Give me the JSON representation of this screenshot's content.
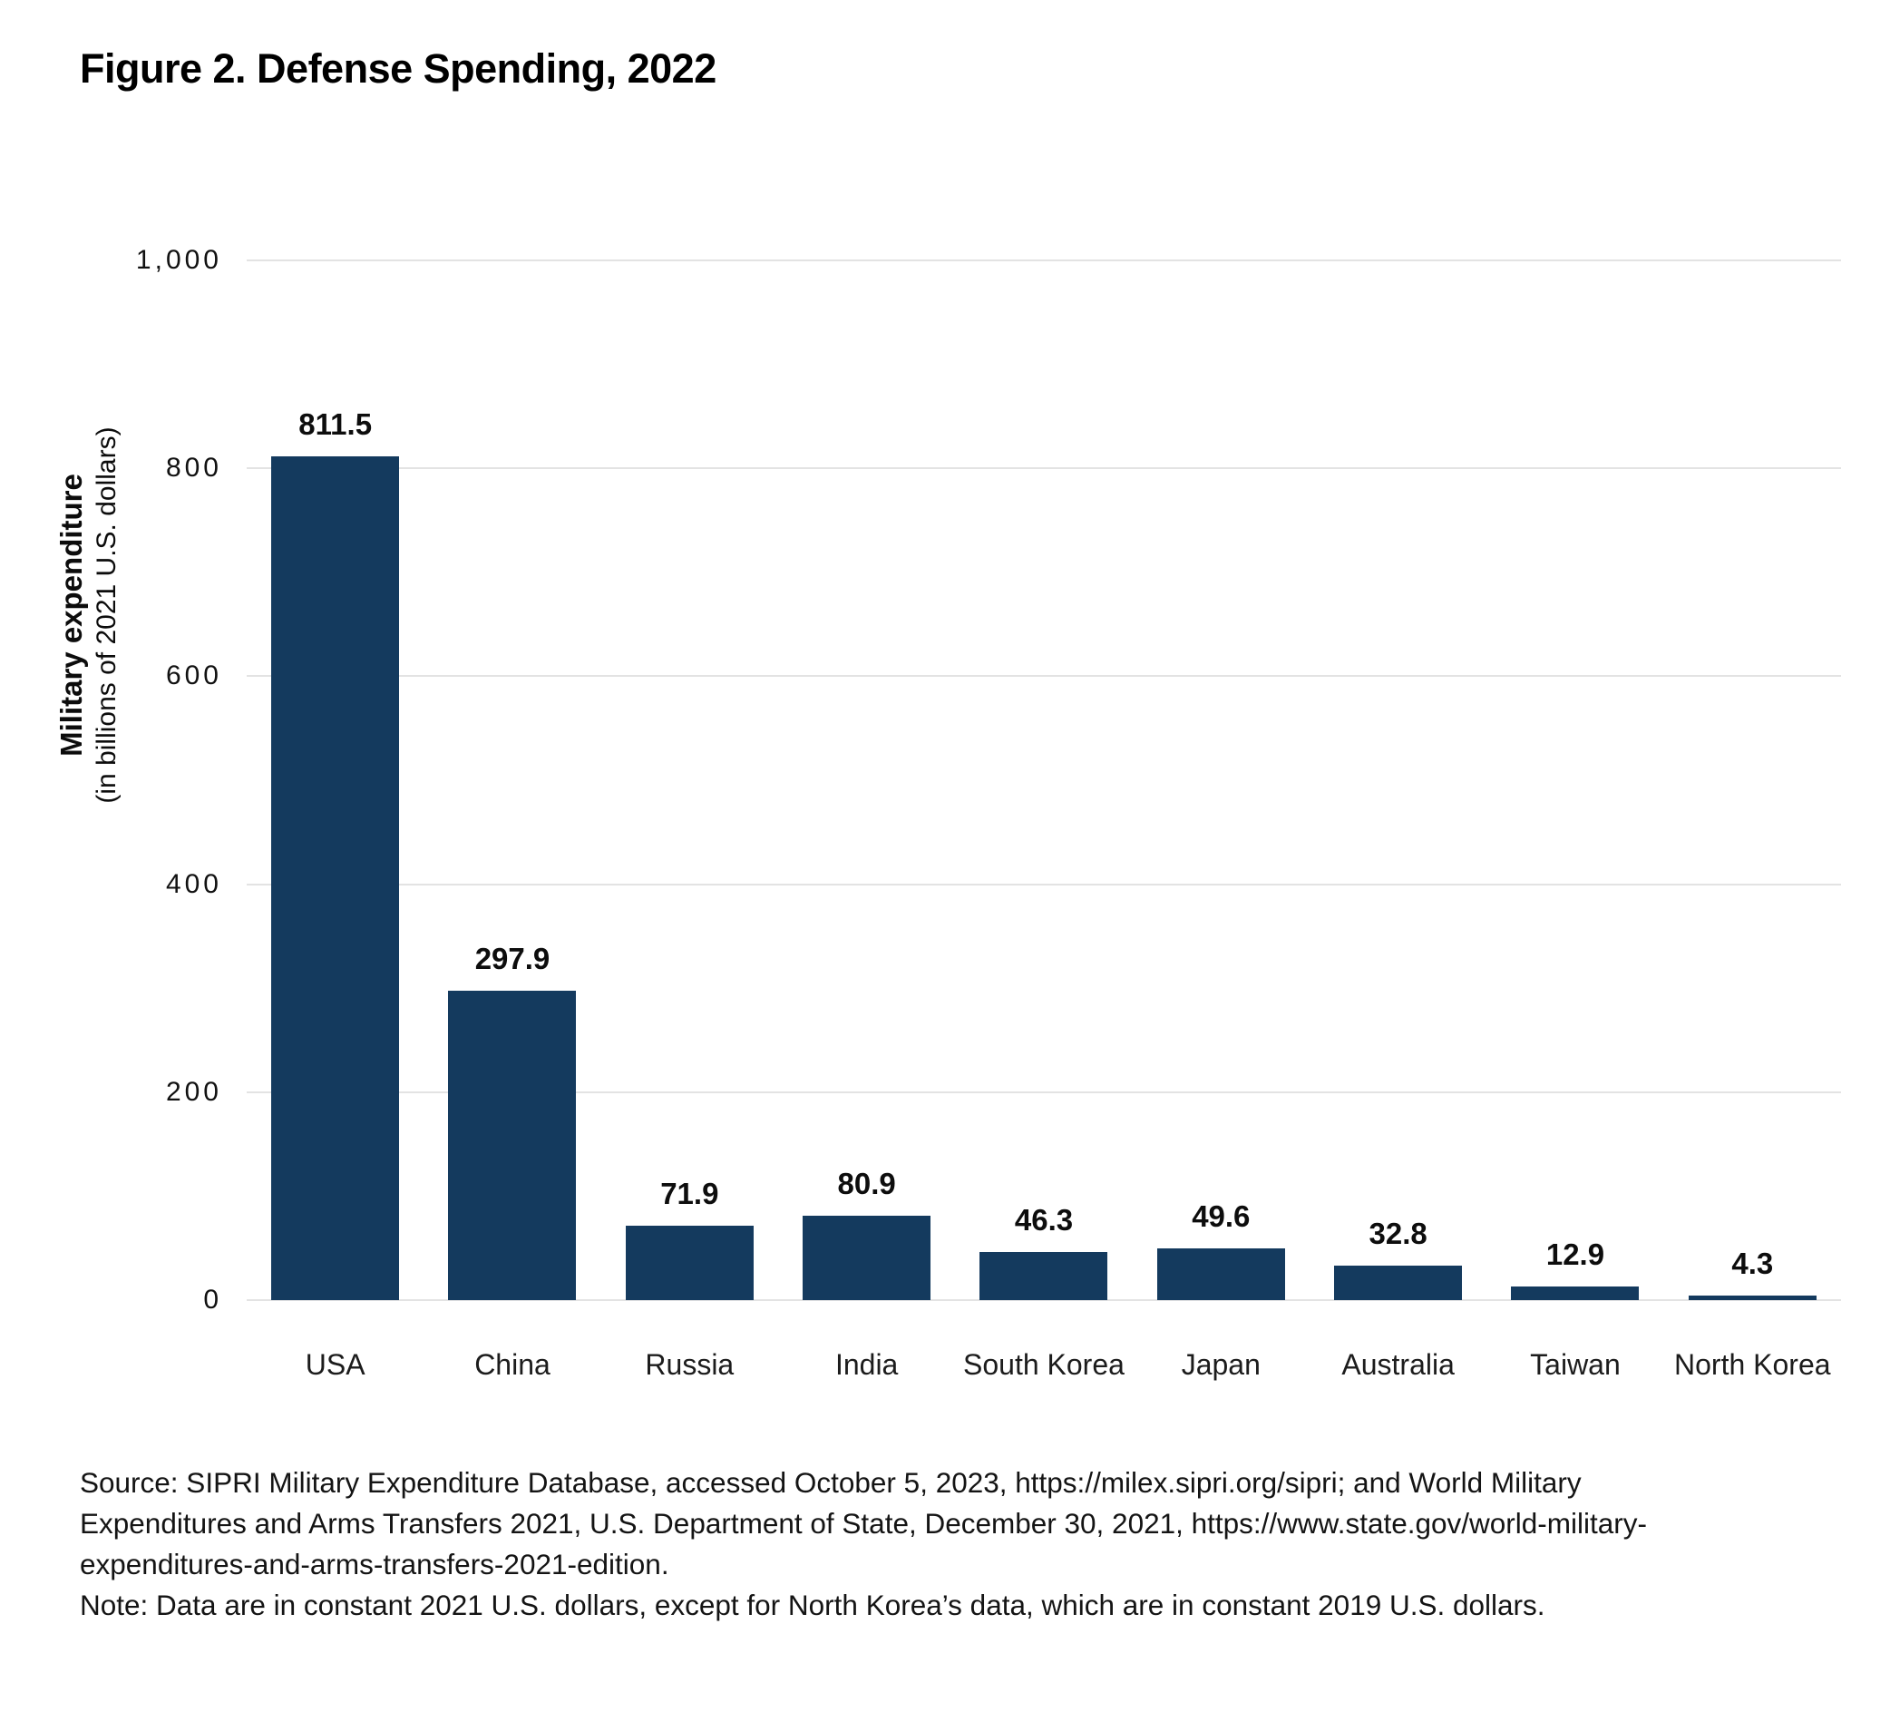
{
  "figure": {
    "title": "Figure 2. Defense Spending, 2022"
  },
  "chart_data": {
    "type": "bar",
    "title": "Figure 2. Defense Spending, 2022",
    "categories": [
      "USA",
      "China",
      "Russia",
      "India",
      "South Korea",
      "Japan",
      "Australia",
      "Taiwan",
      "North Korea"
    ],
    "values": [
      811.5,
      297.9,
      71.9,
      80.9,
      46.3,
      49.6,
      32.8,
      12.9,
      4.3
    ],
    "value_labels": [
      "811.5",
      "297.9",
      "71.9",
      "80.9",
      "46.3",
      "49.6",
      "32.8",
      "12.9",
      "4.3"
    ],
    "xlabel": "",
    "ylabel": "Military expenditure",
    "ylabel_sub": "(in billions of 2021 U.S. dollars)",
    "ylim": [
      0,
      1000
    ],
    "yticks": [
      1000,
      800,
      600,
      400,
      200,
      0
    ],
    "ytick_labels": [
      "1,000",
      "800",
      "600",
      "400",
      "200",
      "0"
    ],
    "grid": true,
    "legend": "none",
    "bar_color": "#143A5E",
    "gridline_color": "#E3E3E3"
  },
  "footer": {
    "source_lines": [
      "Source: SIPRI Military Expenditure Database, accessed October 5, 2023, https://milex.sipri.org/sipri; and World Military",
      "Expenditures and Arms Transfers 2021, U.S. Department of State, December 30, 2021, https://www.state.gov/world-military-",
      "expenditures-and-arms-transfers-2021-edition.",
      "Note: Data are in constant 2021 U.S. dollars, except for North Korea’s data, which are in constant 2019 U.S. dollars."
    ]
  }
}
